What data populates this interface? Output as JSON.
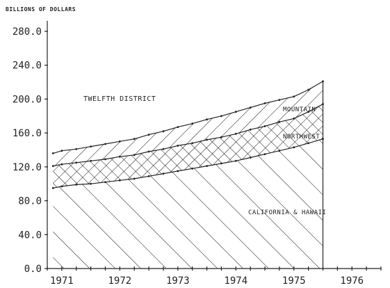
{
  "chart_data": {
    "type": "area",
    "stacked": true,
    "title": "TWELFTH DISTRICT",
    "ylabel": "BILLIONS OF DOLLARS",
    "xlabel": "",
    "ylim": [
      0,
      280
    ],
    "yticks": [
      "0.0",
      "40.0",
      "80.0",
      "120.0",
      "160.0",
      "200.0",
      "240.0",
      "280.0"
    ],
    "xlim": [
      1970.75,
      1976.5
    ],
    "xticks": [
      "1971",
      "1972",
      "1973",
      "1974",
      "1975",
      "1976"
    ],
    "x": [
      1970.85,
      1971,
      1971.25,
      1971.5,
      1971.75,
      1972,
      1972.25,
      1972.5,
      1972.75,
      1973,
      1973.25,
      1973.5,
      1973.75,
      1974,
      1974.25,
      1974.5,
      1974.75,
      1975,
      1975.25,
      1975.5
    ],
    "series": [
      {
        "name": "CALIFORNIA & HAWAII",
        "pattern": "hatch-backslash",
        "values": [
          95,
          97,
          99,
          100,
          102,
          104,
          106,
          109,
          112,
          115,
          118,
          121,
          124,
          127,
          131,
          135,
          139,
          143,
          148,
          153
        ]
      },
      {
        "name": "NORTHWEST",
        "pattern": "crosshatch",
        "values": [
          26,
          26,
          26,
          27,
          27,
          28,
          28,
          29,
          29,
          30,
          30,
          31,
          31,
          32,
          33,
          33,
          34,
          34,
          37,
          41
        ]
      },
      {
        "name": "MOUNTAIN",
        "pattern": "hatch-slash",
        "values": [
          15,
          16,
          16,
          17,
          18,
          18,
          19,
          20,
          21,
          22,
          23,
          24,
          25,
          26,
          26,
          27,
          26,
          26,
          26,
          27
        ]
      }
    ]
  }
}
